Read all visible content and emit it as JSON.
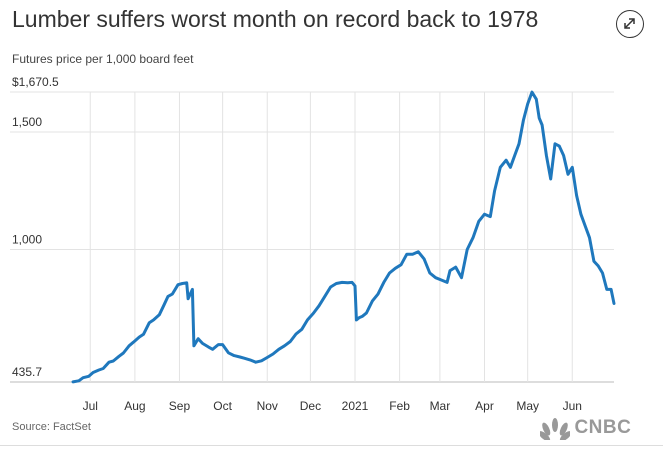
{
  "header": {
    "title": "Lumber suffers worst month on record back to 1978",
    "subtitle": "Futures price per 1,000 board feet",
    "expand_icon": "expand-arrows-icon"
  },
  "footer": {
    "source": "Source: FactSet",
    "logo_text": "CNBC",
    "logo_icon": "nbc-peacock-icon"
  },
  "chart_data": {
    "type": "line",
    "title": "Lumber suffers worst month on record back to 1978",
    "subtitle": "Futures price per 1,000 board feet",
    "ylim": [
      435.7,
      1670.5
    ],
    "y_tick_labels": [
      "$1,670.5",
      "1,500",
      "1,000",
      "435.7"
    ],
    "y_tick_values": [
      1670.5,
      1500,
      1000,
      435.7
    ],
    "x_tick_labels": [
      "Jul",
      "Aug",
      "Sep",
      "Oct",
      "Nov",
      "Dec",
      "2021",
      "Feb",
      "Mar",
      "Apr",
      "May",
      "Jun"
    ],
    "x_tick_values": [
      "2020-07-01",
      "2020-08-01",
      "2020-09-01",
      "2020-10-01",
      "2020-11-01",
      "2020-12-01",
      "2021-01-01",
      "2021-02-01",
      "2021-03-01",
      "2021-04-01",
      "2021-05-01",
      "2021-06-01"
    ],
    "xlim": [
      "2020-06-19",
      "2021-06-30"
    ],
    "grid": true,
    "line_color": "#1f78bd",
    "series": [
      {
        "x": [
          "2020-06-19",
          "2020-06-23",
          "2020-06-26",
          "2020-06-30",
          "2020-07-03",
          "2020-07-07",
          "2020-07-10",
          "2020-07-14",
          "2020-07-17",
          "2020-07-21",
          "2020-07-24",
          "2020-07-28",
          "2020-07-31",
          "2020-08-04",
          "2020-08-07",
          "2020-08-11",
          "2020-08-14",
          "2020-08-18",
          "2020-08-21",
          "2020-08-24",
          "2020-08-27",
          "2020-08-31",
          "2020-09-03",
          "2020-09-06",
          "2020-09-07",
          "2020-09-10",
          "2020-09-11",
          "2020-09-14",
          "2020-09-17",
          "2020-09-21",
          "2020-09-24",
          "2020-09-28",
          "2020-10-01",
          "2020-10-05",
          "2020-10-09",
          "2020-10-13",
          "2020-10-16",
          "2020-10-20",
          "2020-10-24",
          "2020-10-28",
          "2020-11-01",
          "2020-11-05",
          "2020-11-09",
          "2020-11-13",
          "2020-11-17",
          "2020-11-21",
          "2020-11-25",
          "2020-11-29",
          "2020-12-03",
          "2020-12-07",
          "2020-12-11",
          "2020-12-15",
          "2020-12-19",
          "2020-12-23",
          "2020-12-27",
          "2020-12-30",
          "2021-01-01",
          "2021-01-02",
          "2021-01-04",
          "2021-01-06",
          "2021-01-09",
          "2021-01-13",
          "2021-01-17",
          "2021-01-21",
          "2021-01-25",
          "2021-01-29",
          "2021-02-02",
          "2021-02-06",
          "2021-02-10",
          "2021-02-14",
          "2021-02-18",
          "2021-02-22",
          "2021-02-26",
          "2021-03-02",
          "2021-03-06",
          "2021-03-08",
          "2021-03-12",
          "2021-03-16",
          "2021-03-20",
          "2021-03-24",
          "2021-03-28",
          "2021-04-01",
          "2021-04-05",
          "2021-04-08",
          "2021-04-12",
          "2021-04-16",
          "2021-04-19",
          "2021-04-22",
          "2021-04-25",
          "2021-04-28",
          "2021-05-01",
          "2021-05-04",
          "2021-05-07",
          "2021-05-09",
          "2021-05-11",
          "2021-05-14",
          "2021-05-17",
          "2021-05-20",
          "2021-05-23",
          "2021-05-26",
          "2021-05-29",
          "2021-06-01",
          "2021-06-04",
          "2021-06-07",
          "2021-06-10",
          "2021-06-13",
          "2021-06-16",
          "2021-06-19",
          "2021-06-22",
          "2021-06-25",
          "2021-06-28",
          "2021-06-30"
        ],
        "values": [
          436,
          441,
          454,
          460,
          476,
          487,
          493,
          520,
          525,
          545,
          559,
          590,
          605,
          627,
          639,
          688,
          700,
          722,
          760,
          800,
          810,
          850,
          855,
          858,
          790,
          830,
          590,
          620,
          600,
          585,
          575,
          595,
          595,
          560,
          548,
          542,
          537,
          530,
          520,
          526,
          540,
          555,
          575,
          590,
          608,
          640,
          660,
          700,
          728,
          760,
          800,
          840,
          855,
          860,
          858,
          860,
          845,
          700,
          710,
          715,
          730,
          780,
          810,
          860,
          900,
          920,
          935,
          980,
          980,
          990,
          960,
          900,
          880,
          870,
          860,
          910,
          925,
          880,
          1000,
          1050,
          1120,
          1150,
          1140,
          1250,
          1350,
          1380,
          1350,
          1400,
          1450,
          1550,
          1620,
          1670,
          1640,
          1560,
          1530,
          1400,
          1300,
          1450,
          1440,
          1400,
          1320,
          1350,
          1230,
          1150,
          1100,
          1050,
          950,
          930,
          900,
          830,
          830,
          770
        ]
      }
    ]
  }
}
